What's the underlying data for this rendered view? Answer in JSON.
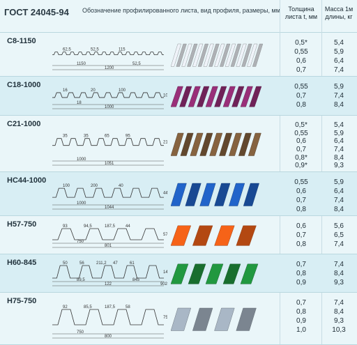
{
  "header": {
    "standard": "ГОСТ 24045-94",
    "description": "Обозначение профилированного листа, вид профиля, размеры, мм",
    "thickness_header": "Толщина листа t, мм",
    "mass_header": "Масса 1м длины, кг"
  },
  "profiles": [
    {
      "code": "С8-1150",
      "color": "#d9dde2",
      "dims": [
        "62,5",
        "52,5",
        "115",
        "1150",
        "1200",
        "52,5"
      ],
      "thickness": [
        "0,5*",
        "0,55",
        "0,6",
        "0,7"
      ],
      "mass": [
        "5,4",
        "5,9",
        "6,4",
        "7,4"
      ]
    },
    {
      "code": "С18-1000",
      "color": "#8b2b6e",
      "dims": [
        "16",
        "20",
        "100",
        "18",
        "1000",
        "1085"
      ],
      "thickness": [
        "0,55",
        "0,7",
        "0,8"
      ],
      "mass": [
        "5,9",
        "7,4",
        "8,4"
      ]
    },
    {
      "code": "С21-1000",
      "color": "#7a5a3a",
      "dims": [
        "35",
        "35",
        "65",
        "95",
        "1000",
        "1051",
        "21"
      ],
      "thickness": [
        "0,5*",
        "0,55",
        "0,6",
        "0,7",
        "0,8*",
        "0,9*"
      ],
      "mass": [
        "5,4",
        "5,9",
        "6,4",
        "7,4",
        "8,4",
        "9,3"
      ]
    },
    {
      "code": "НС44-1000",
      "color": "#1e5bb8",
      "dims": [
        "100",
        "200",
        "40",
        "1000",
        "1044",
        "44"
      ],
      "thickness": [
        "0,55",
        "0,6",
        "0,7",
        "0,8"
      ],
      "mass": [
        "5,9",
        "6,4",
        "7,4",
        "8,4"
      ]
    },
    {
      "code": "Н57-750",
      "color": "#e05a16",
      "dims": [
        "93",
        "94,5",
        "187,5",
        "44",
        "750",
        "801",
        "57"
      ],
      "thickness": [
        "0,6",
        "0,7",
        "0,8"
      ],
      "mass": [
        "5,6",
        "6,5",
        "7,4"
      ]
    },
    {
      "code": "Н60-845",
      "color": "#1e8a3a",
      "dims": [
        "50",
        "56",
        "211,2",
        "47",
        "61",
        "89,5",
        "122",
        "845",
        "902",
        "14"
      ],
      "thickness": [
        "0,7",
        "0,8",
        "0,9"
      ],
      "mass": [
        "7,4",
        "8,4",
        "9,3"
      ]
    },
    {
      "code": "Н75-750",
      "color": "#9aa6b4",
      "dims": [
        "92",
        "85,5",
        "187,5",
        "58",
        "750",
        "800",
        "75"
      ],
      "thickness": [
        "0,7",
        "0,8",
        "0,9",
        "1,0"
      ],
      "mass": [
        "7,4",
        "8,4",
        "9,3",
        "10,3"
      ]
    }
  ]
}
